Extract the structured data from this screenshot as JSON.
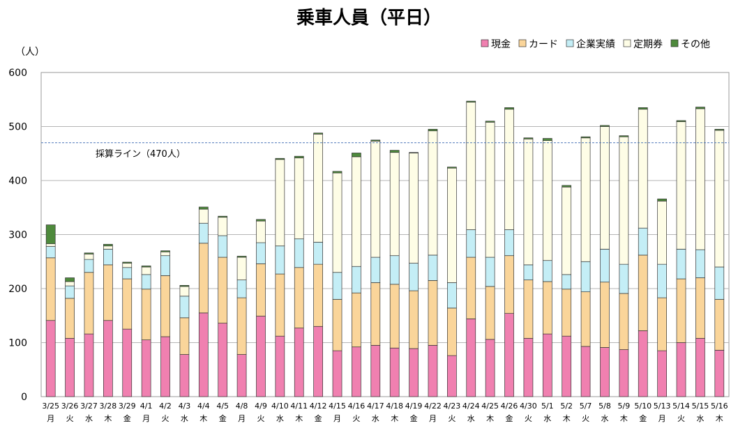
{
  "chart_data": {
    "type": "bar",
    "stacked": true,
    "title": "乗車人員（平日）",
    "ylabel": "（人）",
    "ylim": [
      0,
      600
    ],
    "yticks": [
      0,
      100,
      200,
      300,
      400,
      500,
      600
    ],
    "grid": true,
    "legend_position": "top-right",
    "categories": [
      "3/25",
      "3/26",
      "3/27",
      "3/28",
      "3/29",
      "4/1",
      "4/2",
      "4/3",
      "4/4",
      "4/5",
      "4/8",
      "4/9",
      "4/10",
      "4/11",
      "4/12",
      "4/15",
      "4/16",
      "4/17",
      "4/18",
      "4/19",
      "4/22",
      "4/23",
      "4/24",
      "4/25",
      "4/26",
      "4/30",
      "5/1",
      "5/2",
      "5/7",
      "5/8",
      "5/9",
      "5/10",
      "5/13",
      "5/14",
      "5/15",
      "5/16"
    ],
    "weekdays": [
      "月",
      "火",
      "水",
      "木",
      "金",
      "月",
      "火",
      "水",
      "木",
      "金",
      "月",
      "火",
      "水",
      "木",
      "金",
      "月",
      "火",
      "水",
      "木",
      "金",
      "月",
      "火",
      "水",
      "木",
      "金",
      "火",
      "水",
      "木",
      "火",
      "水",
      "木",
      "金",
      "月",
      "火",
      "水",
      "木"
    ],
    "series": [
      {
        "name": "現金",
        "color": "#f080b0",
        "values": [
          141,
          108,
          116,
          141,
          125,
          105,
          111,
          78,
          155,
          136,
          78,
          149,
          112,
          127,
          130,
          85,
          92,
          95,
          90,
          89,
          95,
          76,
          144,
          106,
          154,
          108,
          116,
          112,
          93,
          91,
          87,
          122,
          85,
          100,
          108,
          86
        ]
      },
      {
        "name": "カード",
        "color": "#fad59a",
        "values": [
          116,
          74,
          114,
          103,
          93,
          94,
          113,
          68,
          129,
          122,
          105,
          97,
          115,
          112,
          115,
          95,
          100,
          116,
          118,
          107,
          120,
          88,
          114,
          98,
          107,
          108,
          97,
          87,
          101,
          121,
          104,
          140,
          98,
          118,
          112,
          94
        ]
      },
      {
        "name": "企業実績",
        "color": "#c4eef6",
        "values": [
          21,
          23,
          24,
          29,
          21,
          27,
          37,
          40,
          37,
          40,
          33,
          39,
          52,
          53,
          41,
          50,
          49,
          47,
          53,
          51,
          47,
          47,
          51,
          54,
          48,
          28,
          39,
          27,
          56,
          61,
          54,
          50,
          62,
          55,
          52,
          60
        ]
      },
      {
        "name": "定期券",
        "color": "#fefde6",
        "values": [
          5,
          8,
          10,
          6,
          8,
          14,
          7,
          18,
          26,
          34,
          42,
          40,
          160,
          150,
          200,
          184,
          203,
          215,
          191,
          204,
          230,
          212,
          236,
          250,
          223,
          233,
          222,
          162,
          229,
          227,
          236,
          220,
          117,
          236,
          261,
          253
        ]
      },
      {
        "name": "その他",
        "color": "#4e8a3c",
        "values": [
          35,
          7,
          2,
          3,
          2,
          2,
          2,
          2,
          4,
          2,
          2,
          3,
          2,
          3,
          2,
          3,
          7,
          2,
          4,
          1,
          3,
          2,
          2,
          2,
          3,
          2,
          4,
          3,
          2,
          2,
          2,
          3,
          4,
          2,
          3,
          2
        ]
      }
    ],
    "reference_line": {
      "value": 470,
      "label": "採算ライン（470人）",
      "color": "#4a76b8"
    }
  }
}
